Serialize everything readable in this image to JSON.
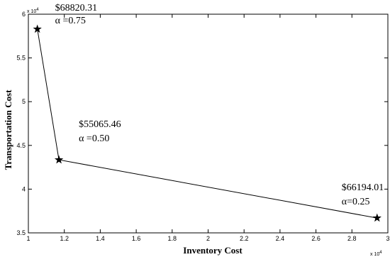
{
  "chart_data": {
    "type": "line",
    "xlabel": "Inventory Cost",
    "ylabel": "Transportation Cost",
    "x_multiplier_label": "x 10",
    "x_multiplier_exp": "4",
    "y_multiplier_label": "x 10",
    "y_multiplier_exp": "4",
    "xlim": [
      1,
      3
    ],
    "ylim": [
      3.5,
      6
    ],
    "xticks": [
      1,
      1.2,
      1.4,
      1.6,
      1.8,
      2,
      2.2,
      2.4,
      2.6,
      2.8,
      3
    ],
    "xtick_labels": [
      "1",
      "1.2",
      "1.4",
      "1.6",
      "1.8",
      "2",
      "2.2",
      "2.4",
      "2.6",
      "2.8",
      "3"
    ],
    "yticks": [
      3.5,
      4,
      4.5,
      5,
      5.5,
      6
    ],
    "ytick_labels": [
      "3.5",
      "4",
      "4.5",
      "5",
      "5.5",
      "6"
    ],
    "grid": false,
    "series": [
      {
        "marker": "star",
        "color": "#000000",
        "points": [
          {
            "x": 1.05,
            "y": 5.83,
            "cost": "$68820.31",
            "alpha": "α =0.75"
          },
          {
            "x": 1.17,
            "y": 4.335,
            "cost": "$55065.46",
            "alpha": "α =0.50"
          },
          {
            "x": 2.94,
            "y": 3.67,
            "cost": "$66194.01",
            "alpha": "α=0.25"
          }
        ]
      }
    ]
  }
}
